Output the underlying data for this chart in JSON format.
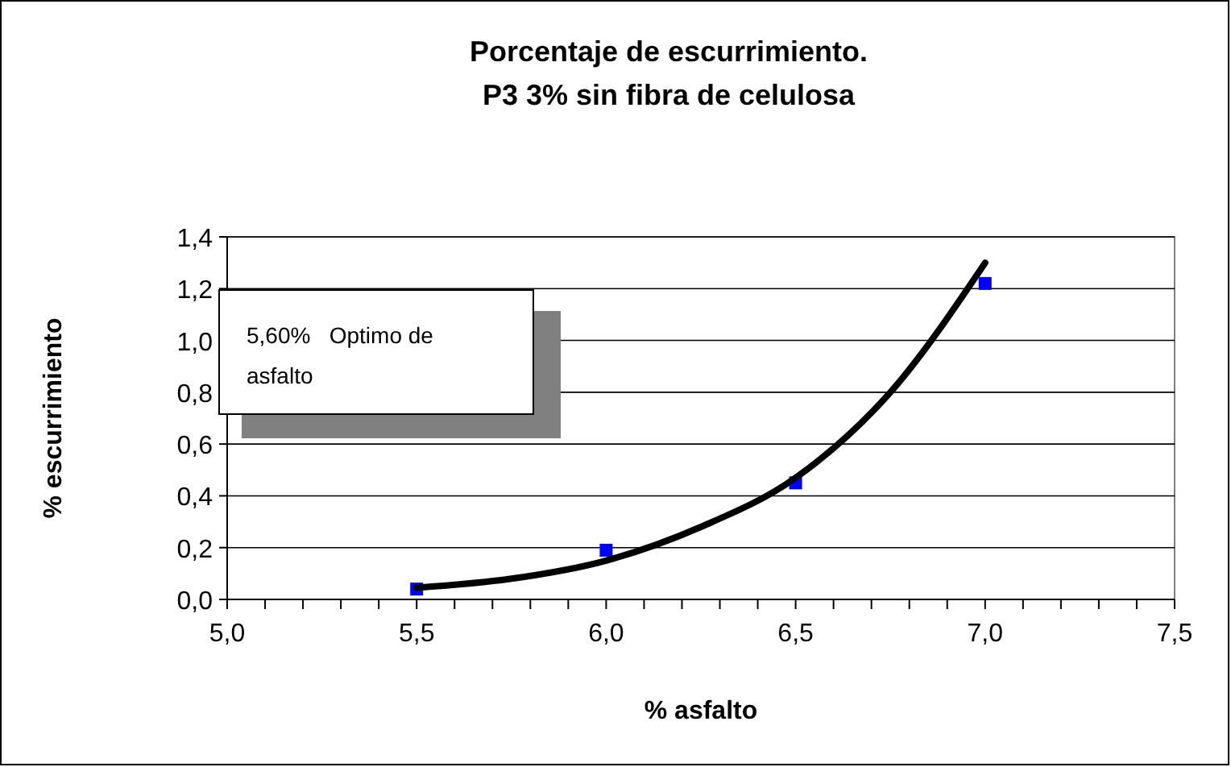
{
  "chart_data": {
    "type": "scatter",
    "title": "Porcentaje de escurrimiento.\nP3 3% sin fibra de celulosa",
    "xlabel": "% asfalto",
    "ylabel": "% escurrimiento",
    "annotations": [
      "5,60%   Optimo de\nasfalto"
    ],
    "xlim": [
      5.0,
      7.5
    ],
    "ylim": [
      0,
      1.4
    ],
    "xticks": [
      {
        "value": 5.0,
        "label": "5,0"
      },
      {
        "value": 5.1,
        "label": null
      },
      {
        "value": 5.2,
        "label": null
      },
      {
        "value": 5.3,
        "label": null
      },
      {
        "value": 5.4,
        "label": null
      },
      {
        "value": 5.5,
        "label": "5,5"
      },
      {
        "value": 5.6,
        "label": null
      },
      {
        "value": 5.7,
        "label": null
      },
      {
        "value": 5.8,
        "label": null
      },
      {
        "value": 5.9,
        "label": null
      },
      {
        "value": 6.0,
        "label": "6,0"
      },
      {
        "value": 6.1,
        "label": null
      },
      {
        "value": 6.2,
        "label": null
      },
      {
        "value": 6.3,
        "label": null
      },
      {
        "value": 6.4,
        "label": null
      },
      {
        "value": 6.5,
        "label": "6,5"
      },
      {
        "value": 6.6,
        "label": null
      },
      {
        "value": 6.7,
        "label": null
      },
      {
        "value": 6.8,
        "label": null
      },
      {
        "value": 6.9,
        "label": null
      },
      {
        "value": 7.0,
        "label": "7,0"
      },
      {
        "value": 7.1,
        "label": null
      },
      {
        "value": 7.2,
        "label": null
      },
      {
        "value": 7.3,
        "label": null
      },
      {
        "value": 7.4,
        "label": null
      },
      {
        "value": 7.5,
        "label": "7,5"
      }
    ],
    "yticks": [
      {
        "value": 0,
        "label": "0,0"
      },
      {
        "value": 0.2,
        "label": "0,2"
      },
      {
        "value": 0.4,
        "label": "0,4"
      },
      {
        "value": 0.6,
        "label": "0,6"
      },
      {
        "value": 0.8,
        "label": "0,8"
      },
      {
        "value": 1.0,
        "label": "1,0"
      },
      {
        "value": 1.2,
        "label": "1,2"
      },
      {
        "value": 1.4,
        "label": "1,4"
      }
    ],
    "grid": "y",
    "marker": "square",
    "series": [
      {
        "color": "#0000ff",
        "x": [
          5.5,
          6.0,
          6.5,
          7.0
        ],
        "values": [
          0.04,
          0.19,
          0.45,
          1.22
        ]
      },
      {
        "type": "line",
        "color": "#000000",
        "marker": "none",
        "line_style": "solid",
        "x": [
          5.5,
          5.75,
          6.0,
          6.25,
          6.5,
          6.75,
          7.0
        ],
        "values": [
          0.045,
          0.08,
          0.15,
          0.28,
          0.47,
          0.8,
          1.3
        ]
      }
    ]
  }
}
